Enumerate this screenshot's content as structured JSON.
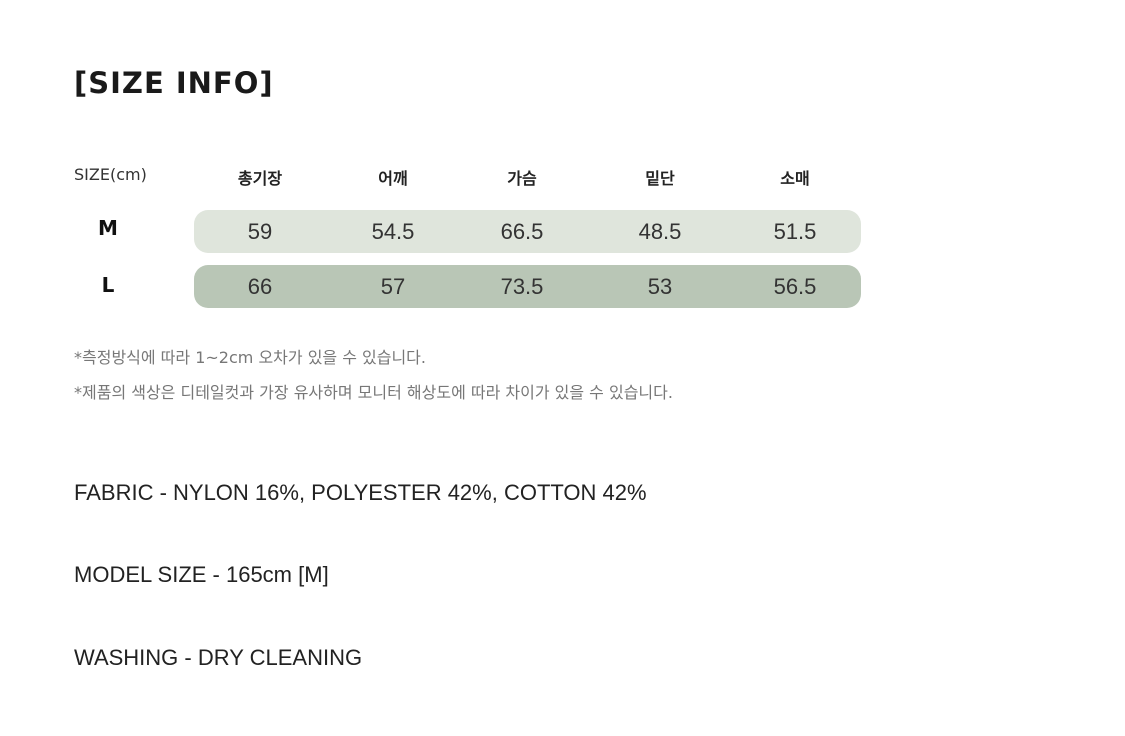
{
  "title": "[SIZE INFO]",
  "table": {
    "size_header": "SIZE(cm)",
    "columns": [
      "총기장",
      "어깨",
      "가슴",
      "밑단",
      "소매"
    ],
    "rows": [
      {
        "size": "M",
        "values": [
          "59",
          "54.5",
          "66.5",
          "48.5",
          "51.5"
        ],
        "color": "#dfe5dc"
      },
      {
        "size": "L",
        "values": [
          "66",
          "57",
          "73.5",
          "53",
          "56.5"
        ],
        "color": "#b9c6b6"
      }
    ]
  },
  "notes": [
    "*측정방식에 따라 1~2cm 오차가 있을 수 있습니다.",
    "*제품의 색상은 디테일컷과 가장 유사하며 모니터 해상도에 따라 차이가 있을 수 있습니다."
  ],
  "specs": {
    "fabric": "FABRIC - NYLON 16%, POLYESTER 42%, COTTON 42%",
    "model_size": "MODEL SIZE - 165cm [M]",
    "washing": "WASHING - DRY CLEANING"
  }
}
